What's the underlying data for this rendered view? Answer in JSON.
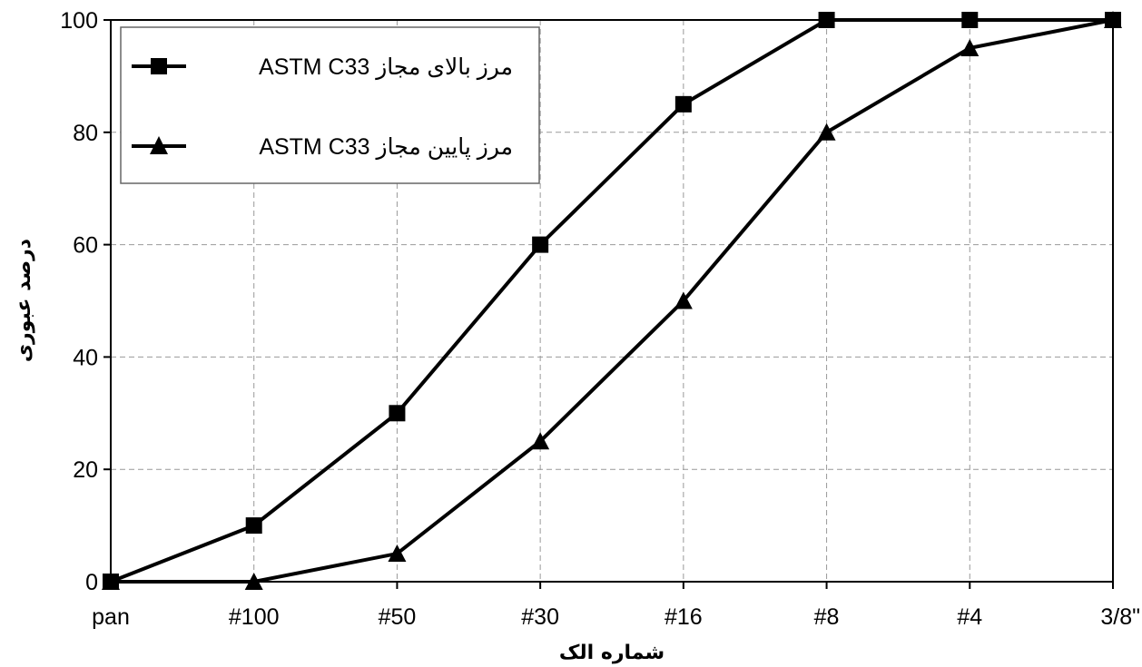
{
  "chart_data": {
    "type": "line",
    "categories": [
      "pan",
      "#100",
      "#50",
      "#30",
      "#16",
      "#8",
      "#4",
      "3/8\""
    ],
    "series": [
      {
        "name": "مرز بالای مجاز ASTM C33",
        "marker": "square",
        "values": [
          0,
          10,
          30,
          60,
          85,
          100,
          100,
          100
        ]
      },
      {
        "name": "مرز پایین مجاز ASTM C33",
        "marker": "triangle",
        "values": [
          0,
          0,
          5,
          25,
          50,
          80,
          95,
          100
        ]
      }
    ],
    "xlabel": "شماره الک",
    "ylabel": "درصد عبوری",
    "ylim": [
      0,
      100
    ],
    "yticks": [
      "0",
      "20",
      "40",
      "60",
      "80",
      "100"
    ],
    "grid": true,
    "legend_position": "top-left",
    "line_color": "#000000",
    "grid_color": "#999999"
  }
}
